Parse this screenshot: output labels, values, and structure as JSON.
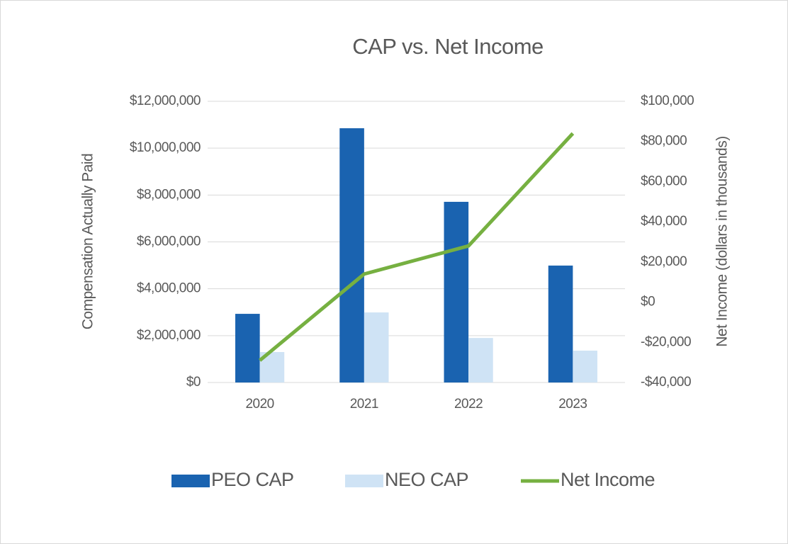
{
  "chart_data": {
    "type": "bar_line",
    "title": "CAP vs. Net Income",
    "y_label": "Compensation Actually Paid",
    "y2_label": "Net Income (dollars in thousands)",
    "categories": [
      "2020",
      "2021",
      "2022",
      "2023"
    ],
    "series": [
      {
        "name": "PEO CAP",
        "type": "bar",
        "color": "#1a63b0",
        "values": [
          2930000,
          10850000,
          7710000,
          4990000
        ]
      },
      {
        "name": "NEO CAP",
        "type": "bar",
        "color": "#cfe3f5",
        "values": [
          1300000,
          2990000,
          1900000,
          1360000
        ]
      },
      {
        "name": "Net Income",
        "type": "line",
        "axis": "y2",
        "color": "#76b041",
        "values": [
          -29000,
          14000,
          28000,
          84000
        ]
      }
    ],
    "ylim": [
      0,
      12000000
    ],
    "yticks": [
      {
        "value": 0,
        "label": "$0"
      },
      {
        "value": 2000000,
        "label": "$2,000,000"
      },
      {
        "value": 4000000,
        "label": "$4,000,000"
      },
      {
        "value": 6000000,
        "label": "$6,000,000"
      },
      {
        "value": 8000000,
        "label": "$8,000,000"
      },
      {
        "value": 10000000,
        "label": "$10,000,000"
      },
      {
        "value": 12000000,
        "label": "$12,000,000"
      }
    ],
    "y2lim": [
      -40000,
      100000
    ],
    "y2ticks": [
      {
        "value": -40000,
        "label": "-$40,000"
      },
      {
        "value": -20000,
        "label": "-$20,000"
      },
      {
        "value": 0,
        "label": "$0"
      },
      {
        "value": 20000,
        "label": "$20,000"
      },
      {
        "value": 40000,
        "label": "$40,000"
      },
      {
        "value": 60000,
        "label": "$60,000"
      },
      {
        "value": 80000,
        "label": "$80,000"
      },
      {
        "value": 100000,
        "label": "$100,000"
      }
    ],
    "grid": true,
    "legend": "bottom"
  }
}
